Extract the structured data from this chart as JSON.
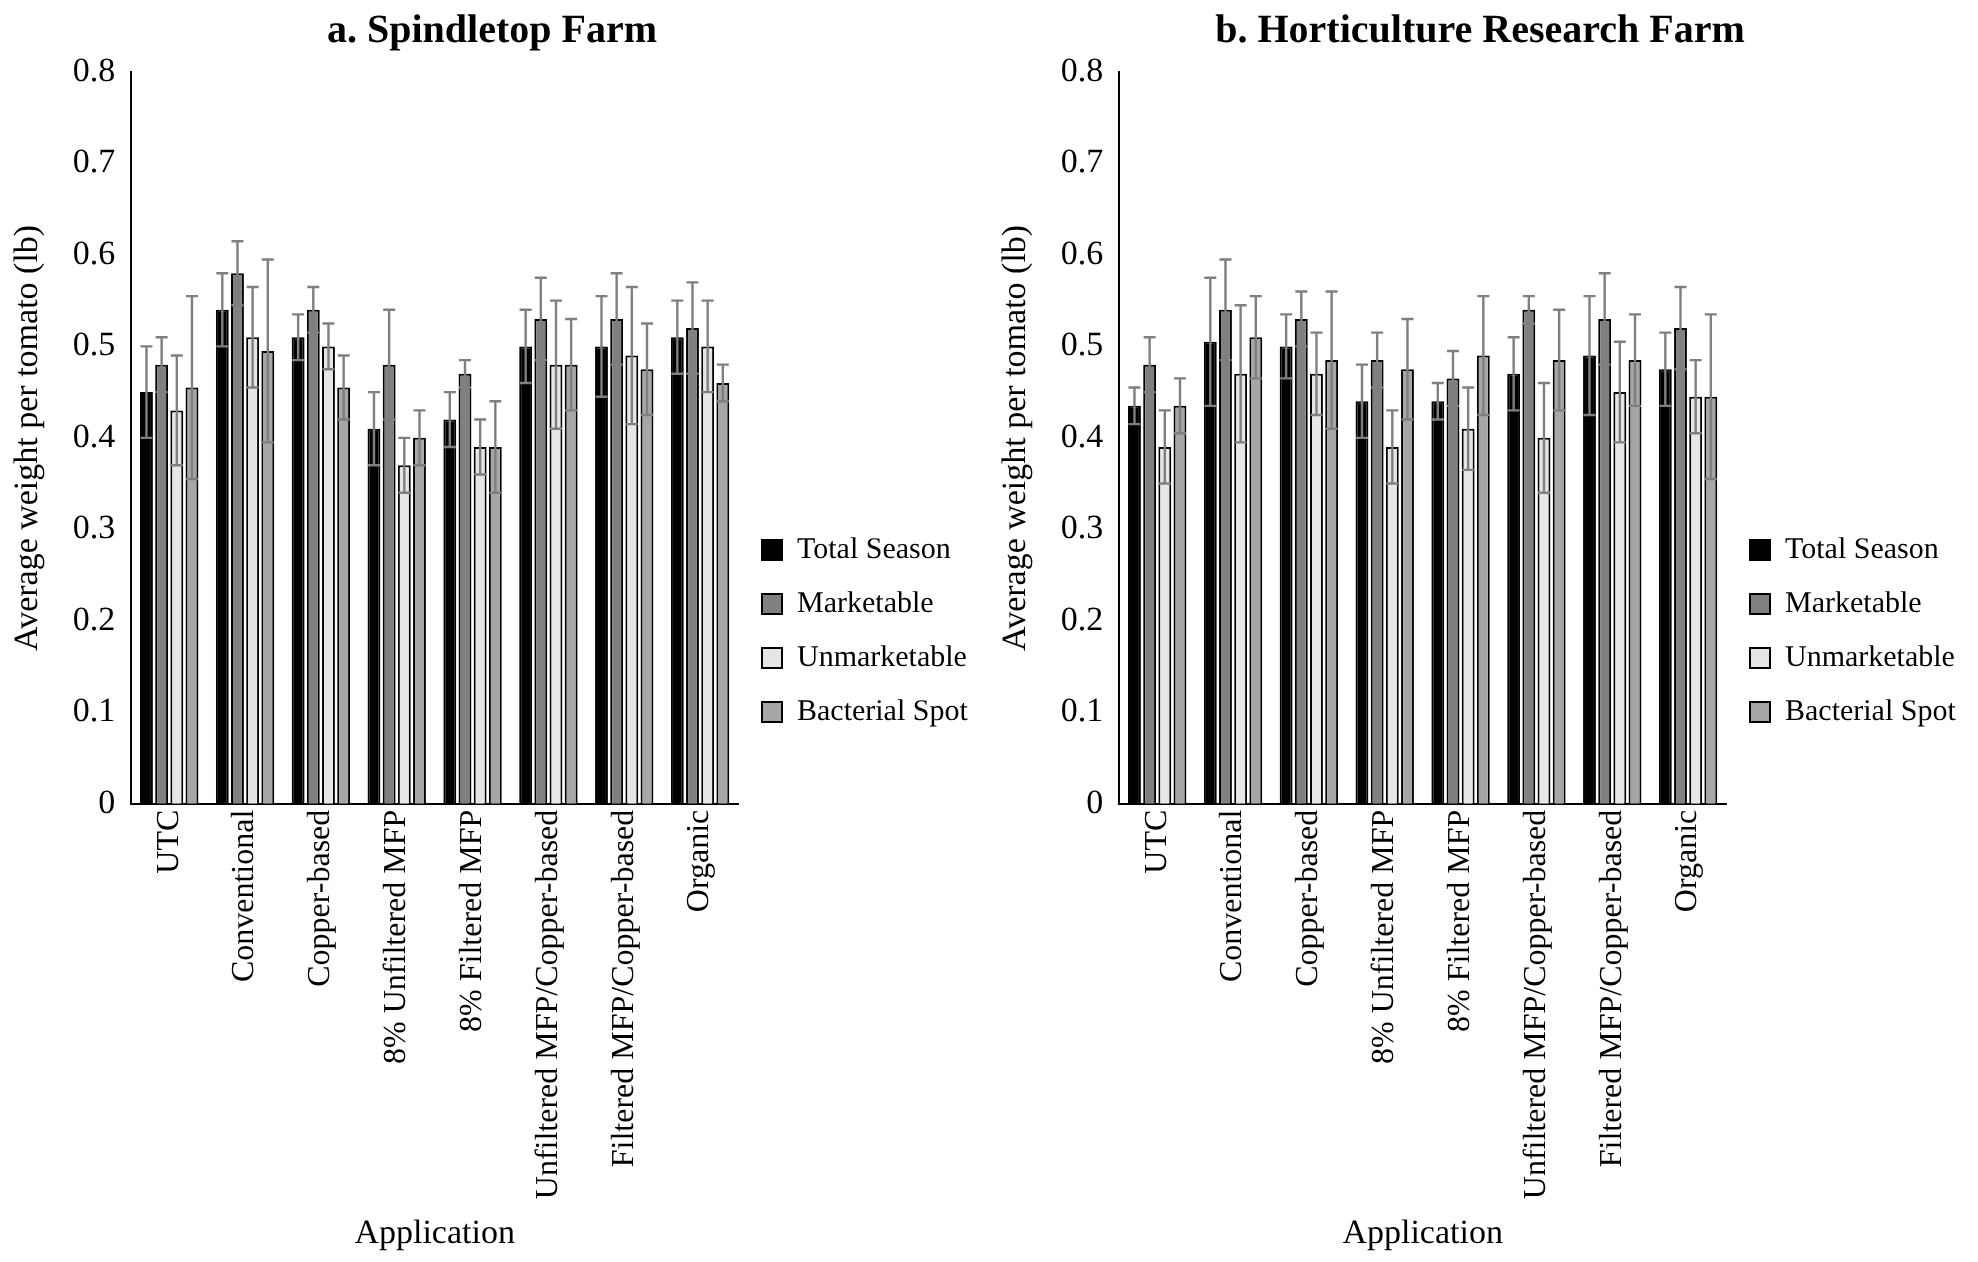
{
  "chart_data": [
    {
      "type": "bar",
      "title": "a. Spindletop Farm",
      "xlabel": "Application",
      "ylabel": "Average weight per tomato (lb)",
      "categories": [
        "UTC",
        "Conventional",
        "Copper-based",
        "8% Unfiltered MFP",
        "8% Filtered MFP",
        "Unfiltered MFP/Copper-based",
        "Filtered MFP/Copper-based",
        "Organic"
      ],
      "ylim": [
        0,
        0.8
      ],
      "yticks": [
        0,
        0.1,
        0.2,
        0.3,
        0.4,
        0.5,
        0.6,
        0.7,
        0.8
      ],
      "grid": false,
      "legend": "right",
      "series": [
        {
          "name": "Total Season",
          "color": "#000000",
          "values": [
            0.45,
            0.54,
            0.51,
            0.41,
            0.42,
            0.5,
            0.5,
            0.51
          ],
          "errors": [
            0.05,
            0.04,
            0.025,
            0.04,
            0.03,
            0.04,
            0.055,
            0.04
          ]
        },
        {
          "name": "Marketable",
          "color": "#808080",
          "values": [
            0.48,
            0.58,
            0.54,
            0.48,
            0.47,
            0.53,
            0.53,
            0.52
          ],
          "errors": [
            0.03,
            0.035,
            0.025,
            0.06,
            0.015,
            0.045,
            0.05,
            0.05
          ]
        },
        {
          "name": "Unmarketable",
          "color": "#e6e6e6",
          "values": [
            0.43,
            0.51,
            0.5,
            0.37,
            0.39,
            0.48,
            0.49,
            0.5
          ],
          "errors": [
            0.06,
            0.055,
            0.025,
            0.03,
            0.03,
            0.07,
            0.075,
            0.05
          ]
        },
        {
          "name": "Bacterial Spot",
          "color": "#a6a6a6",
          "values": [
            0.455,
            0.495,
            0.455,
            0.4,
            0.39,
            0.48,
            0.475,
            0.46
          ],
          "errors": [
            0.1,
            0.1,
            0.035,
            0.03,
            0.05,
            0.05,
            0.05,
            0.02
          ]
        }
      ]
    },
    {
      "type": "bar",
      "title": "b. Horticulture Research Farm",
      "xlabel": "Application",
      "ylabel": "Average weight per tomato (lb)",
      "categories": [
        "UTC",
        "Conventional",
        "Copper-based",
        "8% Unfiltered MFP",
        "8% Filtered MFP",
        "Unfiltered MFP/Copper-based",
        "Filtered MFP/Copper-based",
        "Organic"
      ],
      "ylim": [
        0,
        0.8
      ],
      "yticks": [
        0,
        0.1,
        0.2,
        0.3,
        0.4,
        0.5,
        0.6,
        0.7,
        0.8
      ],
      "grid": false,
      "legend": "right",
      "series": [
        {
          "name": "Total Season",
          "color": "#000000",
          "values": [
            0.435,
            0.505,
            0.5,
            0.44,
            0.44,
            0.47,
            0.49,
            0.475
          ],
          "errors": [
            0.02,
            0.07,
            0.035,
            0.04,
            0.02,
            0.04,
            0.065,
            0.04
          ]
        },
        {
          "name": "Marketable",
          "color": "#808080",
          "values": [
            0.48,
            0.54,
            0.53,
            0.485,
            0.465,
            0.54,
            0.53,
            0.52
          ],
          "errors": [
            0.03,
            0.055,
            0.03,
            0.03,
            0.03,
            0.015,
            0.05,
            0.045
          ]
        },
        {
          "name": "Unmarketable",
          "color": "#e6e6e6",
          "values": [
            0.39,
            0.47,
            0.47,
            0.39,
            0.41,
            0.4,
            0.45,
            0.445
          ],
          "errors": [
            0.04,
            0.075,
            0.045,
            0.04,
            0.045,
            0.06,
            0.055,
            0.04
          ]
        },
        {
          "name": "Bacterial Spot",
          "color": "#a6a6a6",
          "values": [
            0.435,
            0.51,
            0.485,
            0.475,
            0.49,
            0.485,
            0.485,
            0.445
          ],
          "errors": [
            0.03,
            0.045,
            0.075,
            0.055,
            0.065,
            0.055,
            0.05,
            0.09
          ]
        }
      ]
    }
  ]
}
